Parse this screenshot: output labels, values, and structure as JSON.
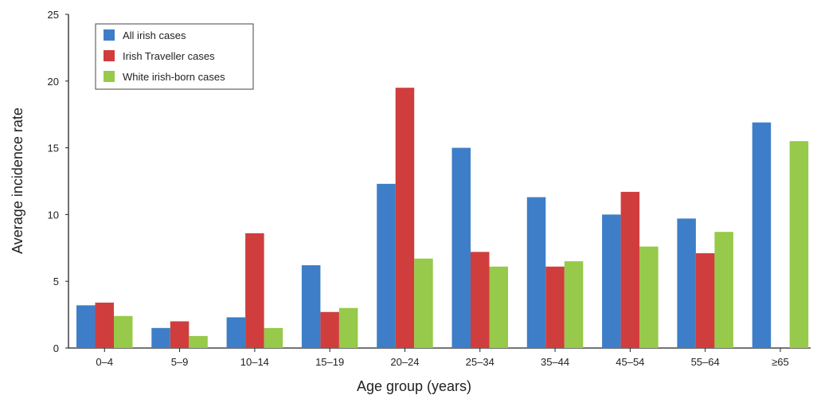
{
  "chart_data": {
    "type": "bar",
    "title": "",
    "xlabel": "Age group (years)",
    "ylabel": "Average incidence rate",
    "ylim": [
      0,
      25
    ],
    "yticks": [
      0,
      5,
      10,
      15,
      20,
      25
    ],
    "grid": false,
    "legend_position": "top-left",
    "categories": [
      "0–4",
      "5–9",
      "10–14",
      "15–19",
      "20–24",
      "25–34",
      "35–44",
      "45–54",
      "55–64",
      "≥65"
    ],
    "series": [
      {
        "name": "All irish cases",
        "color": "#3e7ec8",
        "values": [
          3.2,
          1.5,
          2.3,
          6.2,
          12.3,
          15.0,
          11.3,
          10.0,
          9.7,
          16.9
        ]
      },
      {
        "name": "Irish Traveller cases",
        "color": "#d03d3d",
        "values": [
          3.4,
          2.0,
          8.6,
          2.7,
          19.5,
          7.2,
          6.1,
          11.7,
          7.1,
          null
        ]
      },
      {
        "name": "White irish-born cases",
        "color": "#97c94a",
        "values": [
          2.4,
          0.9,
          1.5,
          3.0,
          6.7,
          6.1,
          6.5,
          7.6,
          8.7,
          15.5
        ]
      }
    ]
  }
}
